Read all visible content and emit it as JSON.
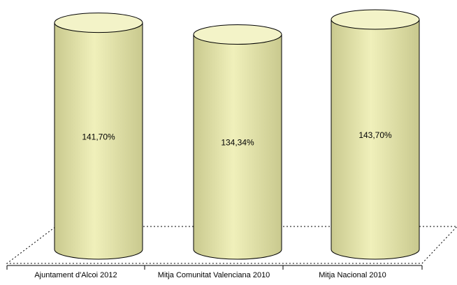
{
  "chart_data": {
    "type": "bar",
    "style": "3d-cylinder",
    "categories": [
      "Ajuntament d'Alcoi 2012",
      "Mitja Comunitat Valenciana 2010",
      "Mitja Nacional 2010"
    ],
    "values": [
      141.7,
      134.34,
      143.7
    ],
    "data_labels": [
      "141,70%",
      "134,34%",
      "143,70%"
    ],
    "unit": "%",
    "ylim": [
      0,
      143.7
    ],
    "grid": false,
    "legend": "none",
    "colors": {
      "cylinder_fill": "#f0f0bb",
      "cylinder_dark": "#c9c98e",
      "cylinder_top": "#f3f3c8",
      "outline": "#000000",
      "floor_line": "#000000"
    }
  }
}
